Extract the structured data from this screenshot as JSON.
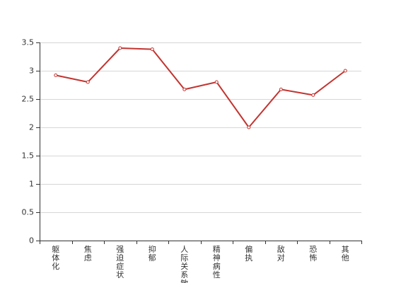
{
  "chart_data": {
    "type": "line",
    "title": "",
    "xlabel": "",
    "ylabel": "",
    "categories": [
      "躯体化",
      "焦虑",
      "强迫症状",
      "抑郁",
      "人际关系敏感",
      "精神病性",
      "偏执",
      "敌对",
      "恐怖",
      "其他"
    ],
    "series": [
      {
        "name": "",
        "color": "#c23531",
        "values": [
          2.92,
          2.8,
          3.4,
          3.38,
          2.67,
          2.8,
          2.0,
          2.67,
          2.57,
          3.0
        ]
      }
    ],
    "ylim": [
      0,
      3.5
    ],
    "yticks": [
      "0",
      "0.5",
      "1",
      "1.5",
      "2",
      "2.5",
      "3",
      "3.5"
    ],
    "grid": true,
    "legend": "none"
  }
}
